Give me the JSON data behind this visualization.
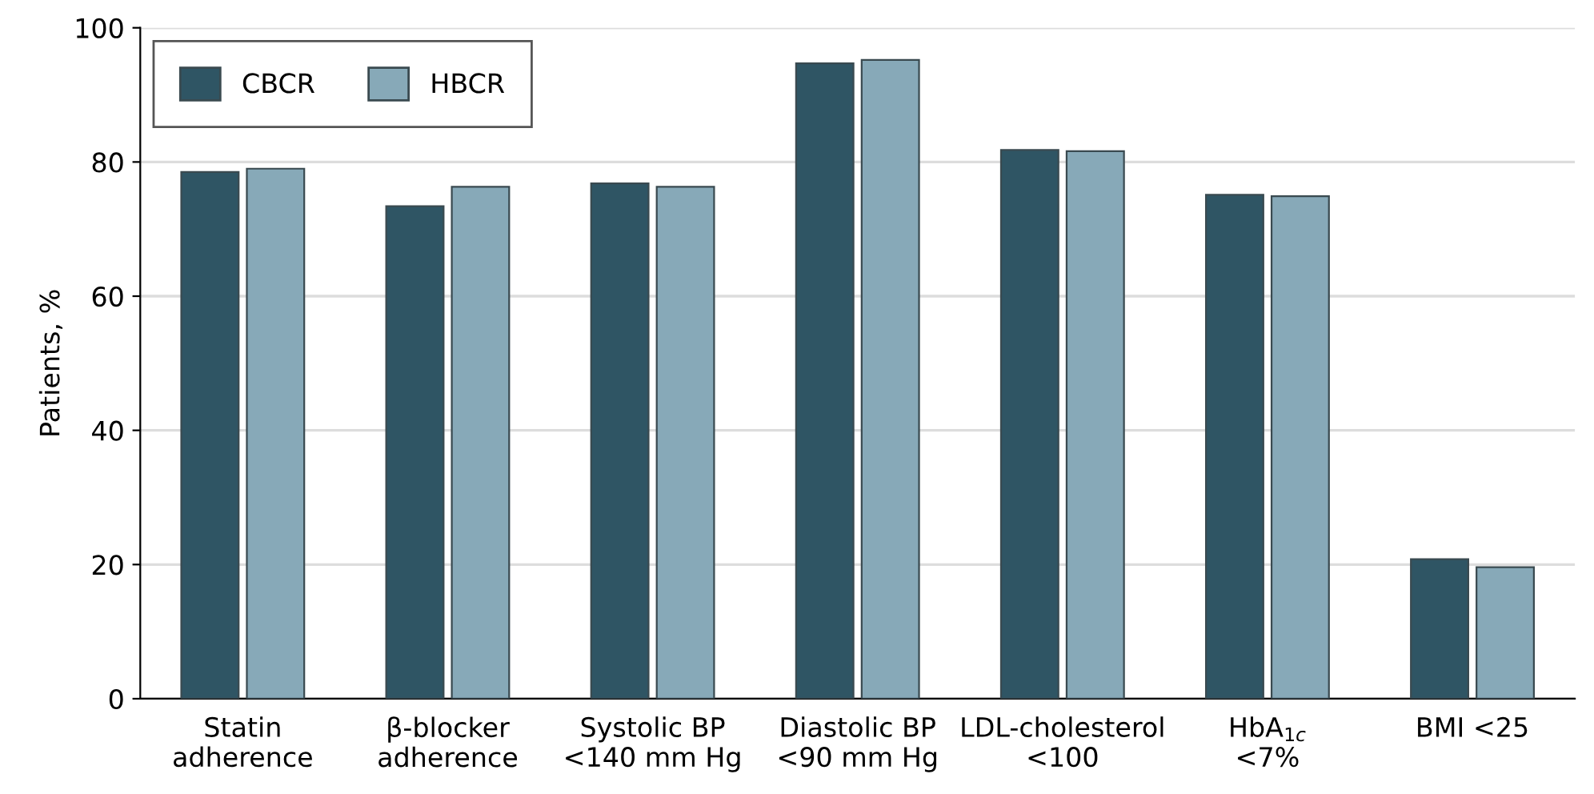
{
  "chart_data": {
    "type": "bar",
    "ylabel": "Patients, %",
    "categories": [
      "Statin\nadherence",
      "β-blocker\nadherence",
      "Systolic BP\n<140 mm Hg",
      "Diastolic BP\n<90 mm Hg",
      "LDL-cholesterol\n<100",
      "HbA$_{1c}$\n<7%",
      "BMI <25"
    ],
    "series": [
      {
        "name": "CBCR",
        "color": "#2f5564",
        "values": [
          78.5,
          73.4,
          76.8,
          94.7,
          81.8,
          75.1,
          20.8
        ]
      },
      {
        "name": "HBCR",
        "color": "#87a9b8",
        "values": [
          79.0,
          76.3,
          76.3,
          95.2,
          81.6,
          74.9,
          19.6
        ]
      }
    ],
    "ylim": [
      0,
      100
    ],
    "yticks": [
      0,
      20,
      40,
      60,
      80,
      100
    ],
    "grid": "y",
    "legend": "top left"
  }
}
